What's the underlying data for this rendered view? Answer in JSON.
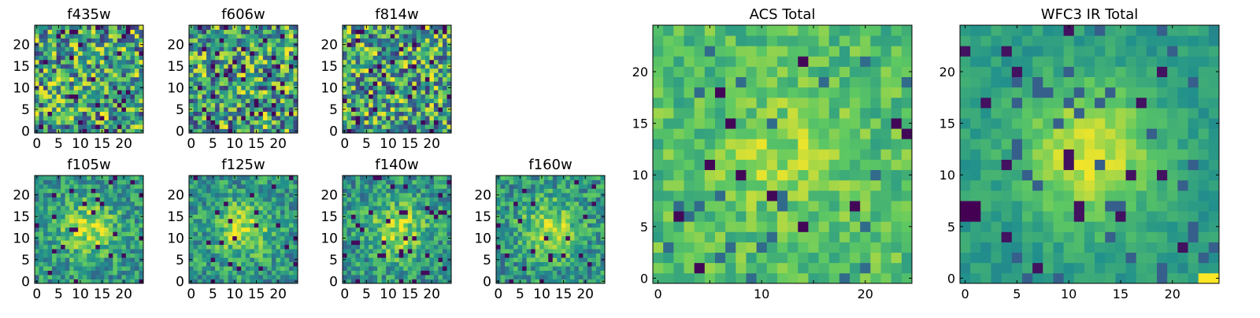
{
  "figure": {
    "colormap": [
      "#440154",
      "#3b528b",
      "#21918c",
      "#5ec962",
      "#fde725"
    ]
  },
  "chart_data": [
    {
      "type": "heatmap",
      "title": "f435w",
      "grid_size": 25,
      "xlim": [
        0,
        24
      ],
      "ylim": [
        0,
        24
      ],
      "xticks": [
        0,
        5,
        10,
        15,
        20
      ],
      "yticks": [
        0,
        5,
        10,
        15,
        20
      ],
      "grid": false,
      "pattern": "noise",
      "seed": 11
    },
    {
      "type": "heatmap",
      "title": "f606w",
      "grid_size": 25,
      "xlim": [
        0,
        24
      ],
      "ylim": [
        0,
        24
      ],
      "xticks": [
        0,
        5,
        10,
        15,
        20
      ],
      "yticks": [
        0,
        5,
        10,
        15,
        20
      ],
      "grid": false,
      "pattern": "noise",
      "seed": 23
    },
    {
      "type": "heatmap",
      "title": "f814w",
      "grid_size": 25,
      "xlim": [
        0,
        24
      ],
      "ylim": [
        0,
        24
      ],
      "xticks": [
        0,
        5,
        10,
        15,
        20
      ],
      "yticks": [
        0,
        5,
        10,
        15,
        20
      ],
      "grid": false,
      "pattern": "noise",
      "seed": 37
    },
    {
      "type": "heatmap",
      "title": "f105w",
      "grid_size": 25,
      "xlim": [
        0,
        24
      ],
      "ylim": [
        0,
        24
      ],
      "xticks": [
        0,
        5,
        10,
        15,
        20
      ],
      "yticks": [
        0,
        5,
        10,
        15,
        20
      ],
      "grid": false,
      "pattern": "source",
      "seed": 41
    },
    {
      "type": "heatmap",
      "title": "f125w",
      "grid_size": 25,
      "xlim": [
        0,
        24
      ],
      "ylim": [
        0,
        24
      ],
      "xticks": [
        0,
        5,
        10,
        15,
        20
      ],
      "yticks": [
        0,
        5,
        10,
        15,
        20
      ],
      "grid": false,
      "pattern": "source",
      "seed": 53
    },
    {
      "type": "heatmap",
      "title": "f140w",
      "grid_size": 25,
      "xlim": [
        0,
        24
      ],
      "ylim": [
        0,
        24
      ],
      "xticks": [
        0,
        5,
        10,
        15,
        20
      ],
      "yticks": [
        0,
        5,
        10,
        15,
        20
      ],
      "grid": false,
      "pattern": "source",
      "seed": 67
    },
    {
      "type": "heatmap",
      "title": "f160w",
      "grid_size": 25,
      "xlim": [
        0,
        24
      ],
      "ylim": [
        0,
        24
      ],
      "xticks": [
        0,
        5,
        10,
        15,
        20
      ],
      "yticks": [
        0,
        5,
        10,
        15,
        20
      ],
      "grid": false,
      "pattern": "source",
      "seed": 79
    },
    {
      "type": "heatmap",
      "title": "ACS Total",
      "grid_size": 25,
      "xlim": [
        0,
        24
      ],
      "ylim": [
        0,
        24
      ],
      "xticks": [
        0,
        10,
        20
      ],
      "xticks_unlabeled": [
        5,
        15
      ],
      "yticks": [
        0,
        5,
        10,
        15,
        20
      ],
      "grid": false,
      "pattern": "acs",
      "seed": 97
    },
    {
      "type": "heatmap",
      "title": "WFC3 IR Total",
      "grid_size": 25,
      "xlim": [
        0,
        24
      ],
      "ylim": [
        0,
        24
      ],
      "xticks": [
        0,
        5,
        10,
        15,
        20
      ],
      "yticks": [
        0,
        5,
        10,
        15,
        20
      ],
      "grid": false,
      "pattern": "ir",
      "seed": 131
    }
  ]
}
